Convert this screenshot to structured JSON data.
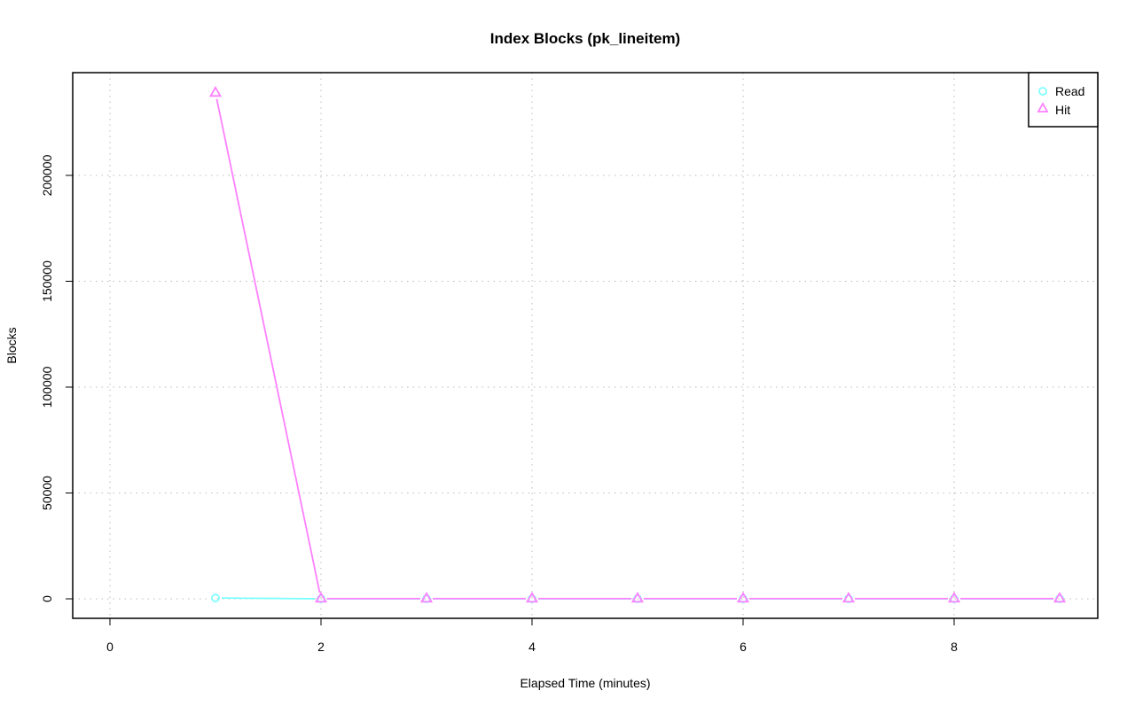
{
  "chart_data": {
    "type": "line",
    "title": "Index Blocks (pk_lineitem)",
    "xlabel": "Elapsed Time (minutes)",
    "ylabel": "Blocks",
    "xlim": [
      0,
      9
    ],
    "ylim": [
      0,
      240000
    ],
    "x_ticks": [
      "0",
      "2",
      "4",
      "6",
      "8"
    ],
    "y_ticks": [
      "0",
      "50000",
      "100000",
      "150000",
      "200000"
    ],
    "grid": true,
    "legend_position": "top-right",
    "x": [
      1,
      2,
      3,
      4,
      5,
      6,
      7,
      8,
      9
    ],
    "series": [
      {
        "name": "Read",
        "color": "#80ffff",
        "marker": "circle",
        "values": [
          400,
          0,
          0,
          0,
          0,
          0,
          0,
          0,
          0
        ]
      },
      {
        "name": "Hit",
        "color": "#ff80ff",
        "marker": "triangle",
        "values": [
          239000,
          100,
          100,
          100,
          100,
          100,
          100,
          100,
          100
        ]
      }
    ]
  }
}
